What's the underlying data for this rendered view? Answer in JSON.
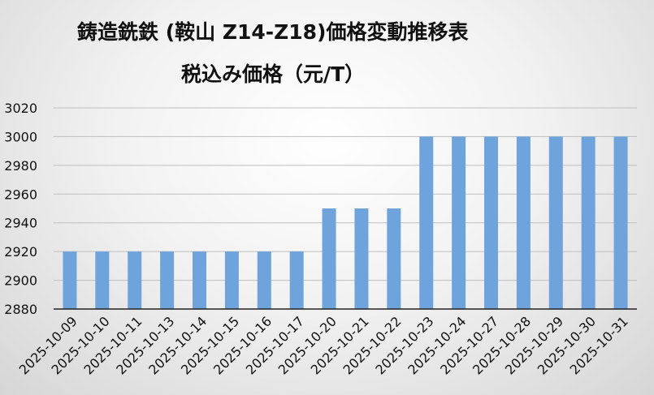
{
  "chart_data": {
    "type": "bar",
    "title": "鋳造銑鉄 (鞍山 Z14-Z18)価格変動推移表",
    "subtitle": "税込み価格（元/T）",
    "xlabel": "",
    "ylabel": "",
    "categories": [
      "2025-10-09",
      "2025-10-10",
      "2025-10-11",
      "2025-10-13",
      "2025-10-14",
      "2025-10-15",
      "2025-10-16",
      "2025-10-17",
      "2025-10-20",
      "2025-10-21",
      "2025-10-22",
      "2025-10-23",
      "2025-10-24",
      "2025-10-27",
      "2025-10-28",
      "2025-10-29",
      "2025-10-30",
      "2025-10-31"
    ],
    "values": [
      2920,
      2920,
      2920,
      2920,
      2920,
      2920,
      2920,
      2920,
      2950,
      2950,
      2950,
      3000,
      3000,
      3000,
      3000,
      3000,
      3000,
      3000
    ],
    "ylim": [
      2880,
      3020
    ],
    "yticks": [
      2880,
      2900,
      2920,
      2940,
      2960,
      2980,
      3000,
      3020
    ],
    "grid": true,
    "legend": "none",
    "bar_color": "#6fa3db"
  }
}
